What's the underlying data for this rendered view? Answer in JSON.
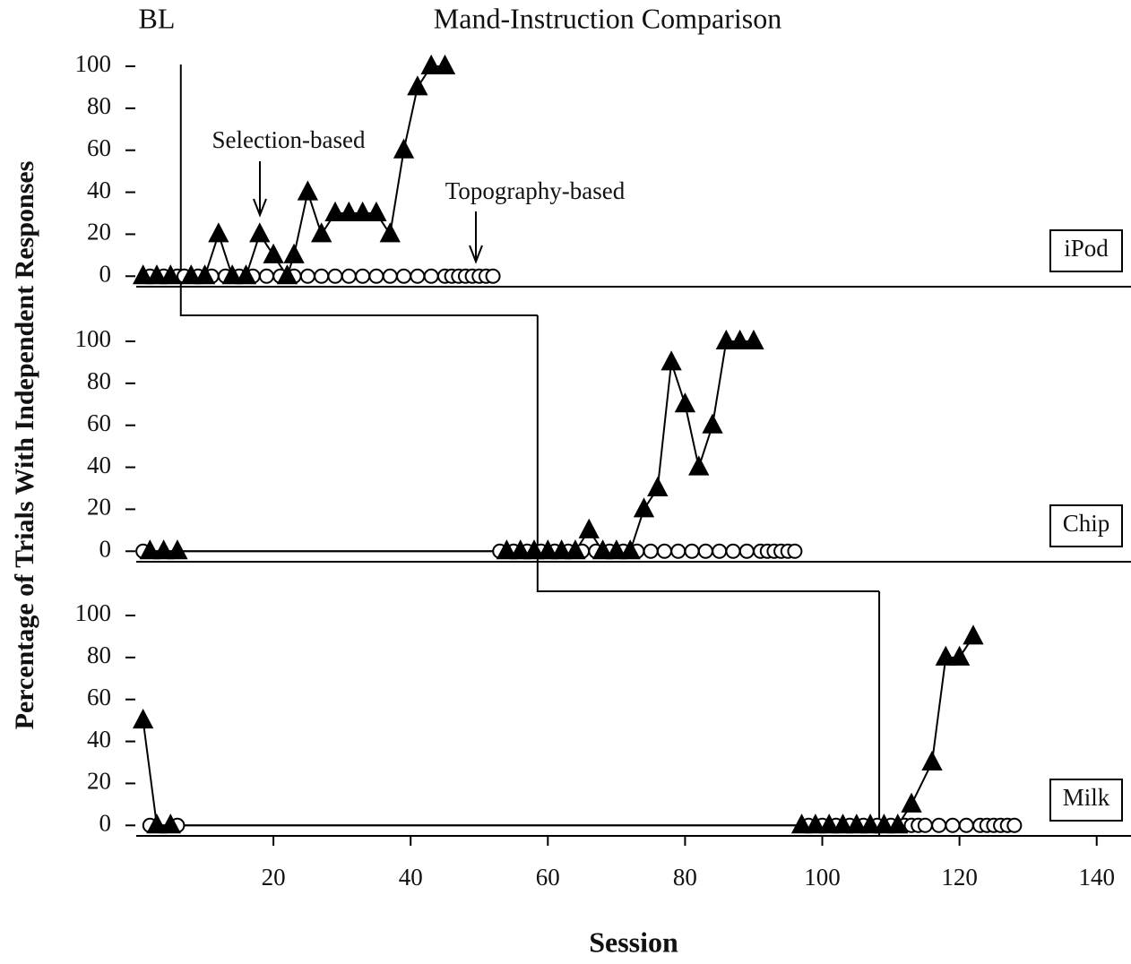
{
  "chart_data": [
    {
      "type": "line",
      "label": "iPod",
      "phase_labels": [
        "BL",
        "Mand-Instruction Comparison"
      ],
      "annotations": [
        "Selection-based",
        "Topography-based"
      ],
      "xlim": [
        0,
        145
      ],
      "ylim": [
        -5,
        100
      ],
      "yticks": [
        0,
        20,
        40,
        60,
        80,
        100
      ],
      "phase_line": 6.5,
      "series": [
        {
          "name": "Topography-based",
          "marker": "circle",
          "color": "#ffffff",
          "x": [
            2,
            4,
            6,
            7,
            9,
            11,
            13,
            15,
            17,
            19,
            21,
            23,
            25,
            27,
            29,
            31,
            33,
            35,
            37,
            39,
            41,
            43,
            45,
            46,
            47,
            48,
            49,
            50,
            51,
            52
          ],
          "values": [
            0,
            0,
            0,
            0,
            0,
            0,
            0,
            0,
            0,
            0,
            0,
            0,
            0,
            0,
            0,
            0,
            0,
            0,
            0,
            0,
            0,
            0,
            0,
            0,
            0,
            0,
            0,
            0,
            0,
            0
          ]
        },
        {
          "name": "Selection-based",
          "marker": "triangle",
          "color": "#000000",
          "x": [
            1,
            3,
            5,
            8,
            10,
            12,
            14,
            16,
            18,
            20,
            22,
            23,
            25,
            27,
            29,
            31,
            33,
            35,
            37,
            39,
            41,
            43,
            45
          ],
          "values": [
            0,
            0,
            0,
            0,
            0,
            20,
            0,
            0,
            20,
            10,
            0,
            10,
            40,
            20,
            30,
            30,
            30,
            30,
            20,
            60,
            90,
            100,
            100
          ]
        }
      ]
    },
    {
      "type": "line",
      "label": "Chip",
      "ylabel": "Percentage of Trials With Independent Responses",
      "xlim": [
        0,
        145
      ],
      "ylim": [
        -5,
        100
      ],
      "yticks": [
        0,
        20,
        40,
        60,
        80,
        100
      ],
      "phase_line": 58.5,
      "series": [
        {
          "marker": "circle",
          "color": "#ffffff",
          "x": [
            1,
            53,
            55,
            57,
            59,
            61,
            63,
            65,
            67,
            69,
            71,
            73,
            75,
            77,
            79,
            81,
            83,
            85,
            87,
            89,
            91,
            92,
            93,
            94,
            95,
            96
          ],
          "values": [
            0,
            0,
            0,
            0,
            0,
            0,
            0,
            0,
            0,
            0,
            0,
            0,
            0,
            0,
            0,
            0,
            0,
            0,
            0,
            0,
            0,
            0,
            0,
            0,
            0,
            0
          ]
        },
        {
          "marker": "triangle",
          "color": "#000000",
          "x": [
            2,
            4,
            6,
            54,
            56,
            58,
            60,
            62,
            64,
            66,
            68,
            70,
            72,
            74,
            76,
            78,
            80,
            82,
            84,
            86,
            88,
            90
          ],
          "values": [
            0,
            0,
            0,
            0,
            0,
            0,
            0,
            0,
            0,
            10,
            0,
            0,
            0,
            20,
            30,
            90,
            70,
            40,
            60,
            100,
            100,
            100
          ]
        }
      ]
    },
    {
      "type": "line",
      "label": "Milk",
      "xlabel": "Session",
      "xlim": [
        0,
        145
      ],
      "xticks": [
        20,
        40,
        60,
        80,
        100,
        120,
        140
      ],
      "ylim": [
        -5,
        100
      ],
      "yticks": [
        0,
        20,
        40,
        60,
        80,
        100
      ],
      "phase_line": 108.3,
      "series": [
        {
          "marker": "circle",
          "color": "#ffffff",
          "x": [
            2,
            6,
            98,
            100,
            102,
            104,
            106,
            108,
            110,
            112,
            113,
            114,
            115,
            117,
            119,
            121,
            123,
            124,
            125,
            126,
            127,
            128
          ],
          "values": [
            0,
            0,
            0,
            0,
            0,
            0,
            0,
            0,
            0,
            0,
            0,
            0,
            0,
            0,
            0,
            0,
            0,
            0,
            0,
            0,
            0,
            0
          ]
        },
        {
          "marker": "triangle",
          "color": "#000000",
          "x": [
            1,
            3,
            5,
            97,
            99,
            101,
            103,
            105,
            107,
            109,
            111,
            113,
            116,
            118,
            120,
            122
          ],
          "values": [
            50,
            0,
            0,
            0,
            0,
            0,
            0,
            0,
            0,
            0,
            0,
            10,
            30,
            80,
            80,
            90
          ]
        }
      ]
    }
  ]
}
